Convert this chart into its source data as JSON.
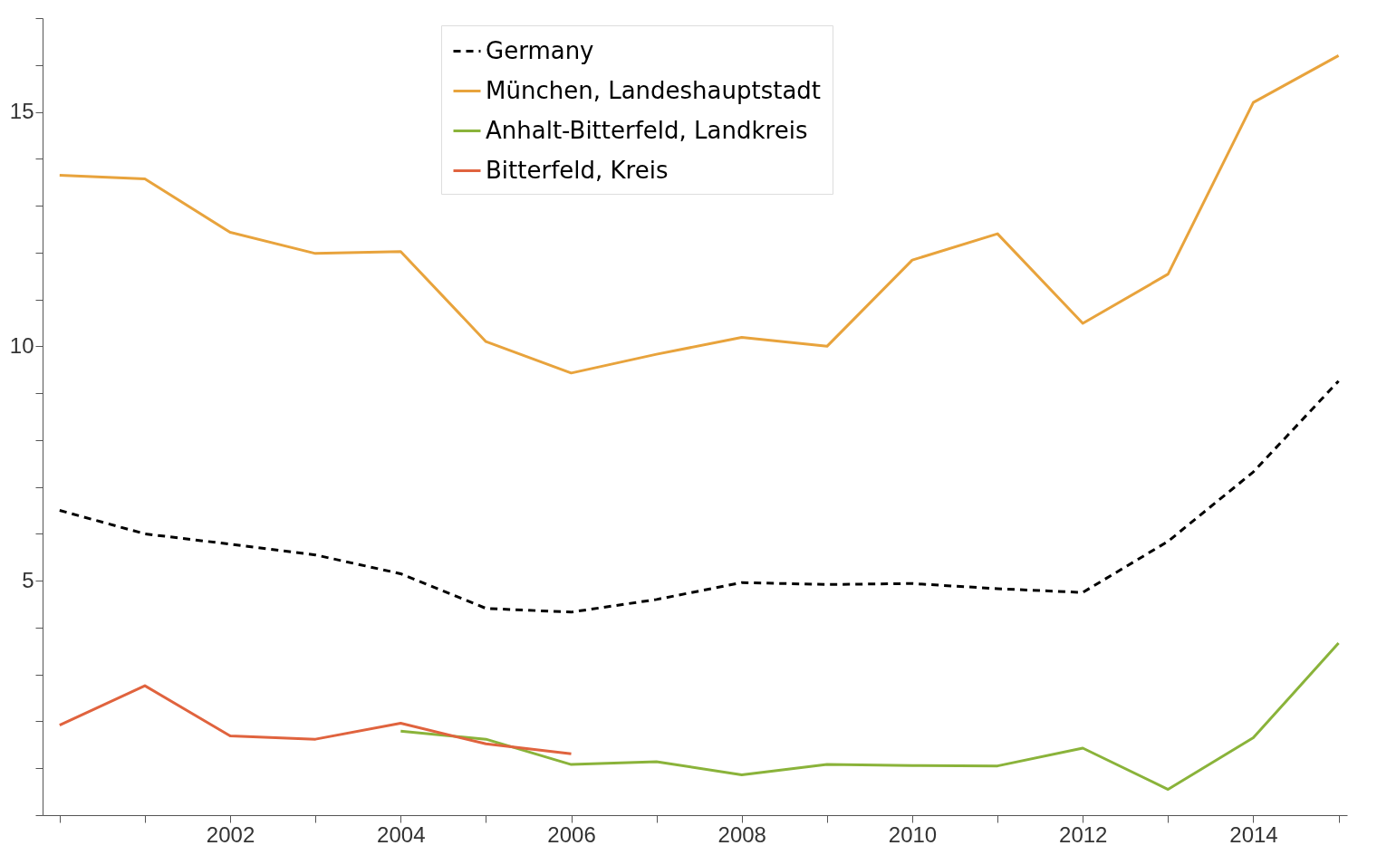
{
  "chart_data": {
    "type": "line",
    "x": [
      2000,
      2001,
      2002,
      2003,
      2004,
      2005,
      2006,
      2007,
      2008,
      2009,
      2010,
      2011,
      2012,
      2013,
      2014,
      2015
    ],
    "xlim": [
      1999.8,
      2015.1
    ],
    "xticks": [
      {
        "value": 2000,
        "label": null
      },
      {
        "value": 2001,
        "label": null
      },
      2002,
      {
        "value": 2003,
        "label": null
      },
      2004,
      {
        "value": 2005,
        "label": null
      },
      2006,
      {
        "value": 2007,
        "label": null
      },
      2008,
      {
        "value": 2009,
        "label": null
      },
      2010,
      {
        "value": 2011,
        "label": null
      },
      2012,
      {
        "value": 2013,
        "label": null
      },
      2014,
      {
        "value": 2015,
        "label": null
      }
    ],
    "ylim": [
      0,
      17
    ],
    "yticks": [
      {
        "value": 0,
        "label": null
      },
      {
        "value": 1,
        "label": null
      },
      {
        "value": 2,
        "label": null
      },
      {
        "value": 3,
        "label": null
      },
      {
        "value": 4,
        "label": null
      },
      5,
      {
        "value": 6,
        "label": null
      },
      {
        "value": 7,
        "label": null
      },
      {
        "value": 8,
        "label": null
      },
      {
        "value": 9,
        "label": null
      },
      10,
      {
        "value": 11,
        "label": null
      },
      {
        "value": 12,
        "label": null
      },
      {
        "value": 13,
        "label": null
      },
      {
        "value": 14,
        "label": null
      },
      15,
      {
        "value": 16,
        "label": null
      },
      {
        "value": 17,
        "label": null
      }
    ],
    "grid": false,
    "legend": "top",
    "marker": "none",
    "series": [
      {
        "name": "Germany",
        "color": "#000000",
        "line_style": "dashed",
        "values": [
          6.5,
          6.0,
          5.78,
          5.55,
          5.15,
          4.41,
          4.33,
          4.6,
          4.96,
          4.92,
          4.94,
          4.83,
          4.75,
          5.84,
          7.32,
          9.26
        ]
      },
      {
        "name": "München, Landeshauptstadt",
        "color": "#e8a33c",
        "line_style": "solid",
        "values": [
          13.65,
          13.57,
          12.43,
          11.98,
          12.02,
          10.1,
          9.43,
          9.83,
          10.19,
          10.0,
          11.84,
          12.4,
          10.49,
          11.54,
          15.2,
          16.2
        ]
      },
      {
        "name": "Anhalt-Bitterfeld, Landkreis",
        "color": "#8ab33a",
        "line_style": "solid",
        "values": [
          null,
          null,
          null,
          null,
          1.79,
          1.62,
          1.08,
          1.14,
          0.86,
          1.08,
          1.06,
          1.05,
          1.43,
          0.55,
          1.65,
          3.67
        ]
      },
      {
        "name": "Bitterfeld, Kreis",
        "color": "#e0633e",
        "line_style": "solid",
        "values": [
          1.92,
          2.76,
          1.69,
          1.62,
          1.96,
          1.52,
          1.31,
          null,
          null,
          null,
          null,
          null,
          null,
          null,
          null,
          null
        ]
      }
    ]
  }
}
